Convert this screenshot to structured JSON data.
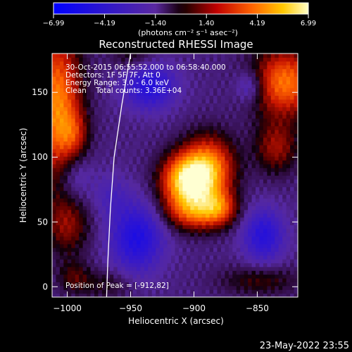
{
  "chart_data": {
    "type": "heatmap",
    "title": "Reconstructed RHESSI Image",
    "xlabel": "Heliocentric X (arcsec)",
    "ylabel": "Heliocentric Y (arcsec)",
    "xlim": [
      -1012,
      -818
    ],
    "ylim": [
      -8,
      180
    ],
    "x_ticks": [
      -1000,
      -950,
      -900,
      -850
    ],
    "y_ticks": [
      0,
      50,
      100,
      150
    ],
    "colorbar": {
      "label": "(photons cm⁻² s⁻¹ asec⁻²)",
      "ticks": [
        "-6.99",
        "-4.19",
        "-1.40",
        "1.40",
        "4.19",
        "6.99"
      ],
      "range": [
        -6.99,
        6.99
      ]
    },
    "annotations": [
      "30-Oct-2015 06:55:52.000 to 06:58:40.000",
      "Detectors: 1F 5F 7F, Att 0",
      "Energy Range: 3.0 - 6.0 keV",
      "Clean    Total counts: 3.36E+04"
    ],
    "peak_label": "Position of Peak = [-912,82]",
    "peak": [
      -912,
      82
    ],
    "limb_points": [
      [
        -950,
        180
      ],
      [
        -957,
        140
      ],
      [
        -963,
        100
      ],
      [
        -966,
        60
      ],
      [
        -968,
        20
      ],
      [
        -969,
        -8
      ]
    ],
    "blobs": [
      {
        "x": -905,
        "y": 82,
        "sx": 14,
        "sy": 14,
        "amp": 7.2
      },
      {
        "x": -888,
        "y": 92,
        "sx": 14,
        "sy": 17,
        "amp": 5.0
      },
      {
        "x": -897,
        "y": 58,
        "sx": 17,
        "sy": 10,
        "amp": 4.2
      },
      {
        "x": -880,
        "y": 62,
        "sx": 9,
        "sy": 9,
        "amp": 2.6
      },
      {
        "x": -1008,
        "y": 140,
        "sx": 13,
        "sy": 40,
        "amp": 5.4
      },
      {
        "x": -995,
        "y": 118,
        "sx": 8,
        "sy": 12,
        "amp": 2.0
      },
      {
        "x": -828,
        "y": 158,
        "sx": 18,
        "sy": 18,
        "amp": 5.0
      },
      {
        "x": -835,
        "y": 108,
        "sx": 12,
        "sy": 14,
        "amp": 2.6
      },
      {
        "x": -1000,
        "y": 48,
        "sx": 12,
        "sy": 16,
        "amp": 2.3
      },
      {
        "x": -995,
        "y": 8,
        "sx": 9,
        "sy": 9,
        "amp": 1.5
      },
      {
        "x": -970,
        "y": 2,
        "sx": 16,
        "sy": 8,
        "amp": 1.2
      },
      {
        "x": -848,
        "y": 5,
        "sx": 22,
        "sy": 8,
        "amp": 1.6
      },
      {
        "x": -948,
        "y": 178,
        "sx": 12,
        "sy": 8,
        "amp": 1.3
      },
      {
        "x": -935,
        "y": 155,
        "sx": 14,
        "sy": 12,
        "amp": -3.5
      },
      {
        "x": -965,
        "y": 70,
        "sx": 10,
        "sy": 12,
        "amp": -1.2
      },
      {
        "x": -945,
        "y": 38,
        "sx": 14,
        "sy": 18,
        "amp": -3.8
      },
      {
        "x": -845,
        "y": 40,
        "sx": 11,
        "sy": 14,
        "amp": -3.3
      },
      {
        "x": -855,
        "y": 155,
        "sx": 8,
        "sy": 9,
        "amp": -2.0
      },
      {
        "x": -995,
        "y": 85,
        "sx": 10,
        "sy": 14,
        "amp": -1.5
      }
    ]
  },
  "footer": {
    "timestamp": "23-May-2022 23:55"
  }
}
